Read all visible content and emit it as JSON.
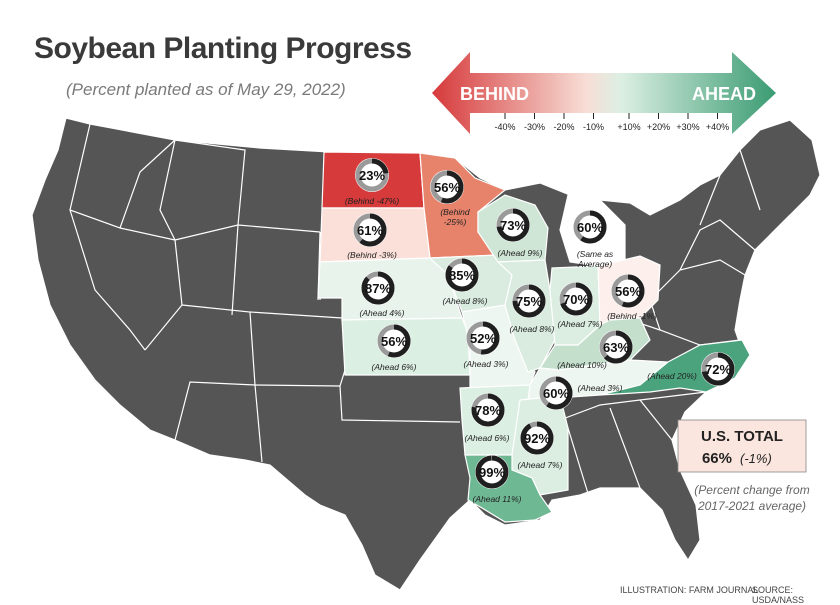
{
  "title": "Soybean Planting Progress",
  "subtitle": "(Percent planted as of May 29, 2022)",
  "scale": {
    "behind_label": "BEHIND",
    "ahead_label": "AHEAD",
    "ticks": [
      "-40%",
      "-30%",
      "-20%",
      "-10%",
      "+10%",
      "+20%",
      "+30%",
      "+40%"
    ],
    "behind_color": "#d6393a",
    "ahead_color": "#3a9b72"
  },
  "states": [
    {
      "id": "nd",
      "state": "North Dakota",
      "percent": 23,
      "pct_label": "23%",
      "change": "(Behind -47%)",
      "color": "#d63a3a"
    },
    {
      "id": "mn",
      "state": "Minnesota",
      "percent": 56,
      "pct_label": "56%",
      "change": "(Behind -25%)",
      "color": "#e8836b"
    },
    {
      "id": "sd",
      "state": "South Dakota",
      "percent": 61,
      "pct_label": "61%",
      "change": "(Behind -3%)",
      "color": "#fae0d8"
    },
    {
      "id": "wi",
      "state": "Wisconsin",
      "percent": 73,
      "pct_label": "73%",
      "change": "(Ahead 9%)",
      "color": "#cfe6d6"
    },
    {
      "id": "mi",
      "state": "Michigan",
      "percent": 60,
      "pct_label": "60%",
      "change": "(Same as Average)",
      "color": "#ffffff"
    },
    {
      "id": "ne",
      "state": "Nebraska",
      "percent": 87,
      "pct_label": "87%",
      "change": "(Ahead 4%)",
      "color": "#e8f3ec"
    },
    {
      "id": "ia",
      "state": "Iowa",
      "percent": 85,
      "pct_label": "85%",
      "change": "(Ahead 8%)",
      "color": "#d9ecdf"
    },
    {
      "id": "il",
      "state": "Illinois",
      "percent": 75,
      "pct_label": "75%",
      "change": "(Ahead 8%)",
      "color": "#d9ecdf"
    },
    {
      "id": "in",
      "state": "Indiana",
      "percent": 70,
      "pct_label": "70%",
      "change": "(Ahead 7%)",
      "color": "#dbeee1"
    },
    {
      "id": "oh",
      "state": "Ohio",
      "percent": 56,
      "pct_label": "56%",
      "change": "(Behind -1%)",
      "color": "#fdf0ec"
    },
    {
      "id": "ks",
      "state": "Kansas",
      "percent": 56,
      "pct_label": "56%",
      "change": "(Ahead 6%)",
      "color": "#dcefe3"
    },
    {
      "id": "mo",
      "state": "Missouri",
      "percent": 52,
      "pct_label": "52%",
      "change": "(Ahead 3%)",
      "color": "#eef6f1"
    },
    {
      "id": "ky",
      "state": "Kentucky",
      "percent": 63,
      "pct_label": "63%",
      "change": "(Ahead 10%)",
      "color": "#c4e0cd"
    },
    {
      "id": "tn",
      "state": "Tennessee",
      "percent": 60,
      "pct_label": "60%",
      "change": "(Ahead 3%)",
      "color": "#eef6f1"
    },
    {
      "id": "nc",
      "state": "North Carolina",
      "percent": 72,
      "pct_label": "72%",
      "change": "(Ahead 20%)",
      "color": "#4aa37c"
    },
    {
      "id": "ar",
      "state": "Arkansas",
      "percent": 78,
      "pct_label": "78%",
      "change": "(Ahead 6%)",
      "color": "#dcefe3"
    },
    {
      "id": "ms",
      "state": "Mississippi",
      "percent": 92,
      "pct_label": "92%",
      "change": "(Ahead 7%)",
      "color": "#dbeee1"
    },
    {
      "id": "la",
      "state": "Louisiana",
      "percent": 99,
      "pct_label": "99%",
      "change": "(Ahead 11%)",
      "color": "#6fb894"
    }
  ],
  "us_total": {
    "heading": "U.S. TOTAL",
    "value": "66%",
    "change": "(-1%)",
    "note_line1": "(Percent change from",
    "note_line2": "2017-2021 average)",
    "box_color": "#fbe6df"
  },
  "footer": {
    "illustration": "ILLUSTRATION: FARM JOURNAL",
    "source": "SOURCE: USDA/NASS"
  },
  "colors": {
    "land": "#555555",
    "state_border": "#ffffff",
    "ring_track": "#9a9a9a",
    "ring_fill": "#1f1f1f"
  }
}
